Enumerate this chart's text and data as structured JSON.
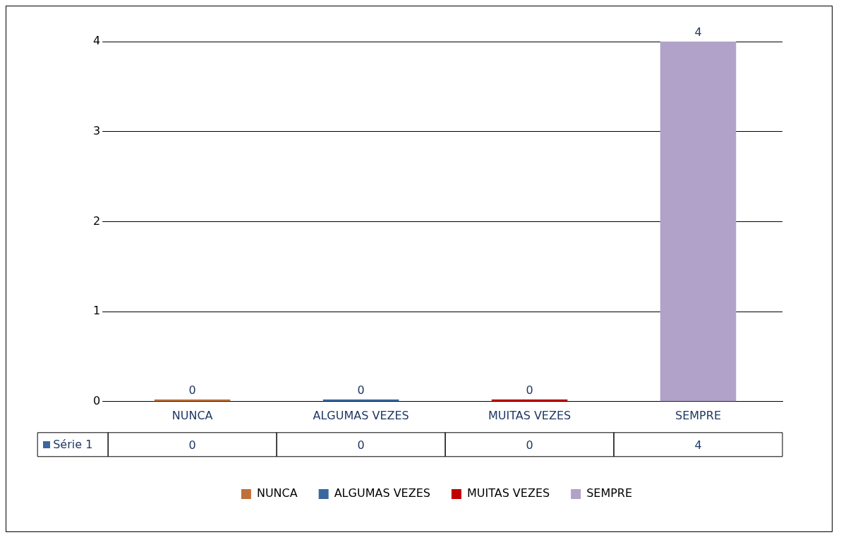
{
  "chart_data": {
    "type": "bar",
    "categories": [
      "NUNCA",
      "ALGUMAS VEZES",
      "MUITAS VEZES",
      "SEMPRE"
    ],
    "series": [
      {
        "name": "NUNCA",
        "color": "#c0703a",
        "values": [
          0,
          null,
          null,
          null
        ],
        "value_labels": [
          "0",
          null,
          null,
          null
        ]
      },
      {
        "name": "ALGUMAS VEZES",
        "color": "#3a679e",
        "values": [
          null,
          0,
          null,
          null
        ],
        "value_labels": [
          null,
          "0",
          null,
          null
        ]
      },
      {
        "name": "MUITAS VEZES",
        "color": "#c00000",
        "values": [
          null,
          null,
          0,
          null
        ],
        "value_labels": [
          null,
          null,
          "0",
          null
        ]
      },
      {
        "name": "SEMPRE",
        "color": "#b0a2c8",
        "values": [
          null,
          null,
          null,
          4
        ],
        "value_labels": [
          null,
          null,
          null,
          "4"
        ]
      }
    ],
    "data_labels": true,
    "annotations": [
      "Série 1",
      "0",
      "0",
      "0",
      "4"
    ],
    "ylim": [
      0,
      4
    ],
    "yticks": [
      0,
      1,
      2,
      3,
      4
    ],
    "grid": "y",
    "legend": "bottom"
  }
}
